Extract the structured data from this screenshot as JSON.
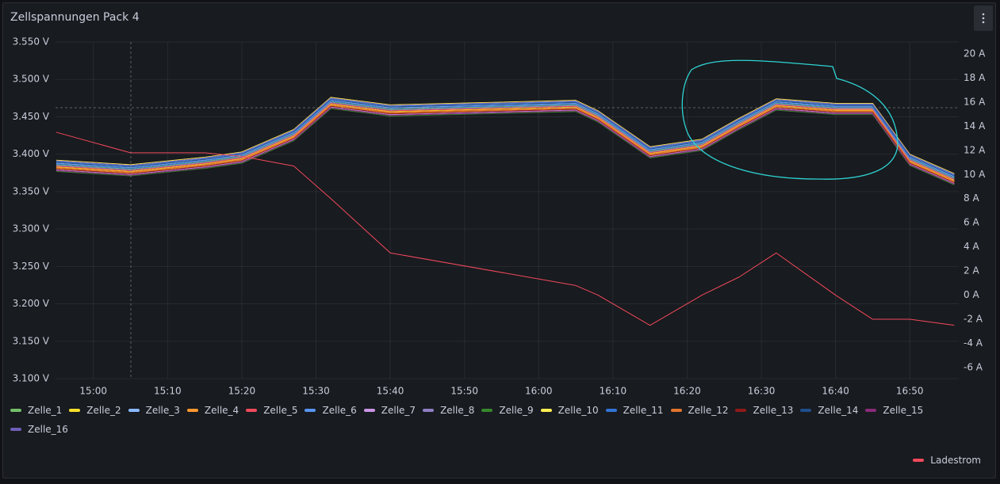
{
  "chart_data": {
    "type": "line",
    "title": "Zellspannungen Pack 4",
    "x": [
      895,
      905,
      915,
      920,
      927,
      932,
      940,
      965,
      968,
      975,
      982,
      987,
      992,
      1000,
      1005,
      1010,
      1016
    ],
    "xlim": [
      894.9,
      1016.6
    ],
    "xticks": [
      {
        "value": 900,
        "label": "15:00"
      },
      {
        "value": 910,
        "label": "15:10"
      },
      {
        "value": 920,
        "label": "15:20"
      },
      {
        "value": 930,
        "label": "15:30"
      },
      {
        "value": 940,
        "label": "15:40"
      },
      {
        "value": 950,
        "label": "15:50"
      },
      {
        "value": 960,
        "label": "16:00"
      },
      {
        "value": 970,
        "label": "16:10"
      },
      {
        "value": 980,
        "label": "16:20"
      },
      {
        "value": 990,
        "label": "16:30"
      },
      {
        "value": 1000,
        "label": "16:40"
      },
      {
        "value": 1010,
        "label": "16:50"
      }
    ],
    "ylim": [
      3.1,
      3.55
    ],
    "yticks": [
      {
        "value": 3.1,
        "label": "3.100 V"
      },
      {
        "value": 3.15,
        "label": "3.150 V"
      },
      {
        "value": 3.2,
        "label": "3.200 V"
      },
      {
        "value": 3.25,
        "label": "3.250 V"
      },
      {
        "value": 3.3,
        "label": "3.300 V"
      },
      {
        "value": 3.35,
        "label": "3.350 V"
      },
      {
        "value": 3.4,
        "label": "3.400 V"
      },
      {
        "value": 3.45,
        "label": "3.450 V"
      },
      {
        "value": 3.5,
        "label": "3.500 V"
      },
      {
        "value": 3.55,
        "label": "3.550 V"
      }
    ],
    "y2lim": [
      -6.92,
      20.98
    ],
    "y2ticks": [
      {
        "value": -6,
        "label": "-6 A"
      },
      {
        "value": -4,
        "label": "-4 A"
      },
      {
        "value": -2,
        "label": "-2 A"
      },
      {
        "value": 0,
        "label": "0 A"
      },
      {
        "value": 2,
        "label": "2 A"
      },
      {
        "value": 4,
        "label": "4 A"
      },
      {
        "value": 6,
        "label": "6 A"
      },
      {
        "value": 8,
        "label": "8 A"
      },
      {
        "value": 10,
        "label": "10 A"
      },
      {
        "value": 12,
        "label": "12 A"
      },
      {
        "value": 14,
        "label": "14 A"
      },
      {
        "value": 16,
        "label": "16 A"
      },
      {
        "value": 18,
        "label": "18 A"
      },
      {
        "value": 20,
        "label": "20 A"
      }
    ],
    "grid": true,
    "series": [
      {
        "name": "Zelle_1",
        "color": "#73bf69",
        "values": [
          3.386,
          3.38,
          3.39,
          3.397,
          3.427,
          3.47,
          3.46,
          3.466,
          3.452,
          3.404,
          3.414,
          3.442,
          3.468,
          3.462,
          3.462,
          3.394,
          3.368
        ]
      },
      {
        "name": "Zelle_2",
        "color": "#fade2a",
        "values": [
          3.383,
          3.377,
          3.387,
          3.394,
          3.424,
          3.467,
          3.457,
          3.463,
          3.449,
          3.401,
          3.411,
          3.439,
          3.465,
          3.459,
          3.459,
          3.391,
          3.365
        ]
      },
      {
        "name": "Zelle_3",
        "color": "#8ab8ff",
        "values": [
          3.388,
          3.382,
          3.392,
          3.399,
          3.429,
          3.472,
          3.462,
          3.468,
          3.454,
          3.406,
          3.416,
          3.444,
          3.47,
          3.464,
          3.464,
          3.396,
          3.37
        ]
      },
      {
        "name": "Zelle_4",
        "color": "#ff9830",
        "values": [
          3.381,
          3.375,
          3.385,
          3.392,
          3.422,
          3.465,
          3.455,
          3.461,
          3.447,
          3.399,
          3.409,
          3.437,
          3.463,
          3.457,
          3.457,
          3.389,
          3.363
        ]
      },
      {
        "name": "Zelle_5",
        "color": "#f2495c",
        "values": [
          3.384,
          3.378,
          3.388,
          3.395,
          3.425,
          3.468,
          3.458,
          3.464,
          3.45,
          3.402,
          3.412,
          3.44,
          3.466,
          3.46,
          3.46,
          3.392,
          3.366
        ]
      },
      {
        "name": "Zelle_6",
        "color": "#5794f2",
        "values": [
          3.39,
          3.384,
          3.394,
          3.401,
          3.431,
          3.474,
          3.464,
          3.47,
          3.456,
          3.408,
          3.418,
          3.446,
          3.472,
          3.466,
          3.466,
          3.398,
          3.372
        ]
      },
      {
        "name": "Zelle_7",
        "color": "#ca95e5",
        "values": [
          3.379,
          3.373,
          3.383,
          3.39,
          3.42,
          3.463,
          3.453,
          3.459,
          3.445,
          3.397,
          3.407,
          3.435,
          3.461,
          3.455,
          3.455,
          3.387,
          3.361
        ]
      },
      {
        "name": "Zelle_8",
        "color": "#8f7fc4",
        "values": [
          3.385,
          3.379,
          3.389,
          3.396,
          3.426,
          3.469,
          3.459,
          3.465,
          3.451,
          3.403,
          3.413,
          3.441,
          3.467,
          3.461,
          3.461,
          3.393,
          3.367
        ]
      },
      {
        "name": "Zelle_9",
        "color": "#37872d",
        "values": [
          3.377,
          3.371,
          3.381,
          3.388,
          3.418,
          3.461,
          3.451,
          3.457,
          3.443,
          3.395,
          3.405,
          3.433,
          3.459,
          3.453,
          3.453,
          3.385,
          3.359
        ]
      },
      {
        "name": "Zelle_10",
        "color": "#ffee52",
        "values": [
          3.392,
          3.386,
          3.396,
          3.403,
          3.433,
          3.476,
          3.466,
          3.472,
          3.458,
          3.41,
          3.42,
          3.448,
          3.474,
          3.468,
          3.468,
          3.4,
          3.374
        ]
      },
      {
        "name": "Zelle_11",
        "color": "#3274d9",
        "values": [
          3.387,
          3.381,
          3.391,
          3.398,
          3.428,
          3.471,
          3.461,
          3.467,
          3.453,
          3.405,
          3.415,
          3.443,
          3.469,
          3.463,
          3.463,
          3.395,
          3.369
        ]
      },
      {
        "name": "Zelle_12",
        "color": "#e0752d",
        "values": [
          3.382,
          3.376,
          3.386,
          3.393,
          3.423,
          3.466,
          3.456,
          3.462,
          3.448,
          3.4,
          3.41,
          3.438,
          3.464,
          3.458,
          3.458,
          3.39,
          3.364
        ]
      },
      {
        "name": "Zelle_13",
        "color": "#8f1a1a",
        "values": [
          3.38,
          3.374,
          3.384,
          3.391,
          3.421,
          3.464,
          3.454,
          3.46,
          3.446,
          3.398,
          3.408,
          3.436,
          3.462,
          3.456,
          3.456,
          3.388,
          3.362
        ]
      },
      {
        "name": "Zelle_14",
        "color": "#1f4e8c",
        "values": [
          3.389,
          3.383,
          3.393,
          3.4,
          3.43,
          3.473,
          3.463,
          3.469,
          3.455,
          3.407,
          3.417,
          3.445,
          3.471,
          3.465,
          3.465,
          3.397,
          3.371
        ]
      },
      {
        "name": "Zelle_15",
        "color": "#8a2a7a",
        "values": [
          3.378,
          3.372,
          3.382,
          3.389,
          3.419,
          3.462,
          3.452,
          3.458,
          3.444,
          3.396,
          3.406,
          3.434,
          3.46,
          3.454,
          3.454,
          3.386,
          3.36
        ]
      },
      {
        "name": "Zelle_16",
        "color": "#6e5eb8",
        "values": [
          3.391,
          3.385,
          3.395,
          3.402,
          3.432,
          3.475,
          3.465,
          3.471,
          3.457,
          3.409,
          3.419,
          3.447,
          3.473,
          3.467,
          3.467,
          3.399,
          3.373
        ]
      },
      {
        "name": "Ladestrom",
        "color": "#f2495c",
        "axis": "y2",
        "values": [
          13.5,
          11.8,
          11.8,
          11.5,
          10.7,
          8.0,
          3.5,
          0.8,
          0.0,
          -2.5,
          0.0,
          1.5,
          3.5,
          0.0,
          -2.0,
          -2.0,
          -2.5
        ]
      }
    ]
  }
}
